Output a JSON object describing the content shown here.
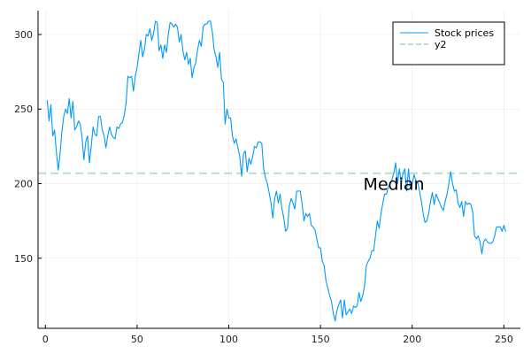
{
  "chart_data": {
    "type": "line",
    "title": "",
    "xlabel": "",
    "ylabel": "",
    "xlim": [
      -4,
      259
    ],
    "ylim": [
      103,
      316
    ],
    "xticks": [
      0,
      50,
      100,
      150,
      200,
      250
    ],
    "yticks": [
      150,
      200,
      250,
      300
    ],
    "grid": true,
    "legend_position": "top-right",
    "series": [
      {
        "name": "Stock prices",
        "color": "#009af9",
        "style": "solid",
        "points": [
          [
            1,
            256
          ],
          [
            2,
            242
          ],
          [
            3,
            253
          ],
          [
            4,
            232
          ],
          [
            5,
            236
          ],
          [
            6,
            221
          ],
          [
            7,
            209
          ],
          [
            8,
            220
          ],
          [
            9,
            235
          ],
          [
            10,
            245
          ],
          [
            11,
            250
          ],
          [
            12,
            247
          ],
          [
            13,
            257
          ],
          [
            14,
            244
          ],
          [
            15,
            255
          ],
          [
            16,
            236
          ],
          [
            17,
            238
          ],
          [
            18,
            242
          ],
          [
            19,
            240
          ],
          [
            20,
            231
          ],
          [
            21,
            216
          ],
          [
            22,
            228
          ],
          [
            23,
            232
          ],
          [
            24,
            214
          ],
          [
            25,
            225
          ],
          [
            26,
            238
          ],
          [
            27,
            233
          ],
          [
            28,
            232
          ],
          [
            29,
            245
          ],
          [
            30,
            245
          ],
          [
            31,
            236
          ],
          [
            32,
            232
          ],
          [
            33,
            224
          ],
          [
            34,
            232
          ],
          [
            35,
            238
          ],
          [
            36,
            233
          ],
          [
            37,
            231
          ],
          [
            38,
            230
          ],
          [
            39,
            238
          ],
          [
            40,
            237
          ],
          [
            41,
            240
          ],
          [
            42,
            241
          ],
          [
            43,
            246
          ],
          [
            44,
            254
          ],
          [
            45,
            272
          ],
          [
            46,
            271
          ],
          [
            47,
            272
          ],
          [
            48,
            262
          ],
          [
            49,
            272
          ],
          [
            50,
            278
          ],
          [
            51,
            287
          ],
          [
            52,
            296
          ],
          [
            53,
            285
          ],
          [
            54,
            290
          ],
          [
            55,
            300
          ],
          [
            56,
            299
          ],
          [
            57,
            304
          ],
          [
            58,
            296
          ],
          [
            59,
            301
          ],
          [
            60,
            309
          ],
          [
            61,
            308
          ],
          [
            62,
            289
          ],
          [
            63,
            293
          ],
          [
            64,
            284
          ],
          [
            65,
            293
          ],
          [
            66,
            288
          ],
          [
            67,
            300
          ],
          [
            68,
            308
          ],
          [
            69,
            307
          ],
          [
            70,
            305
          ],
          [
            71,
            307
          ],
          [
            72,
            305
          ],
          [
            73,
            295
          ],
          [
            74,
            300
          ],
          [
            75,
            289
          ],
          [
            76,
            283
          ],
          [
            77,
            288
          ],
          [
            78,
            280
          ],
          [
            79,
            284
          ],
          [
            80,
            271
          ],
          [
            81,
            278
          ],
          [
            82,
            281
          ],
          [
            83,
            290
          ],
          [
            84,
            296
          ],
          [
            85,
            292
          ],
          [
            86,
            305
          ],
          [
            87,
            307
          ],
          [
            88,
            307
          ],
          [
            89,
            309
          ],
          [
            90,
            309
          ],
          [
            91,
            302
          ],
          [
            92,
            290
          ],
          [
            93,
            285
          ],
          [
            94,
            278
          ],
          [
            95,
            288
          ],
          [
            96,
            270
          ],
          [
            97,
            268
          ],
          [
            98,
            240
          ],
          [
            99,
            250
          ],
          [
            100,
            244
          ],
          [
            101,
            244
          ],
          [
            102,
            232
          ],
          [
            103,
            227
          ],
          [
            104,
            230
          ],
          [
            105,
            224
          ],
          [
            106,
            218
          ],
          [
            107,
            205
          ],
          [
            108,
            220
          ],
          [
            109,
            222
          ],
          [
            110,
            208
          ],
          [
            111,
            217
          ],
          [
            112,
            213
          ],
          [
            113,
            218
          ],
          [
            114,
            225
          ],
          [
            115,
            224
          ],
          [
            116,
            228
          ],
          [
            117,
            228
          ],
          [
            118,
            227
          ],
          [
            119,
            210
          ],
          [
            120,
            204
          ],
          [
            121,
            200
          ],
          [
            122,
            194
          ],
          [
            123,
            187
          ],
          [
            124,
            177
          ],
          [
            125,
            190
          ],
          [
            126,
            195
          ],
          [
            127,
            187
          ],
          [
            128,
            193
          ],
          [
            129,
            183
          ],
          [
            130,
            177
          ],
          [
            131,
            168
          ],
          [
            132,
            170
          ],
          [
            133,
            185
          ],
          [
            134,
            190
          ],
          [
            135,
            187
          ],
          [
            136,
            183
          ],
          [
            137,
            195
          ],
          [
            138,
            195
          ],
          [
            139,
            195
          ],
          [
            140,
            186
          ],
          [
            141,
            175
          ],
          [
            142,
            180
          ],
          [
            143,
            178
          ],
          [
            144,
            180
          ],
          [
            145,
            172
          ],
          [
            146,
            171
          ],
          [
            147,
            169
          ],
          [
            148,
            163
          ],
          [
            149,
            157
          ],
          [
            150,
            157
          ],
          [
            151,
            148
          ],
          [
            152,
            145
          ],
          [
            153,
            135
          ],
          [
            154,
            130
          ],
          [
            155,
            125
          ],
          [
            156,
            121
          ],
          [
            157,
            113
          ],
          [
            158,
            108
          ],
          [
            159,
            115
          ],
          [
            160,
            119
          ],
          [
            161,
            122
          ],
          [
            162,
            110
          ],
          [
            163,
            122
          ],
          [
            164,
            112
          ],
          [
            165,
            114
          ],
          [
            166,
            116
          ],
          [
            167,
            113
          ],
          [
            168,
            118
          ],
          [
            169,
            117
          ],
          [
            170,
            118
          ],
          [
            171,
            127
          ],
          [
            172,
            121
          ],
          [
            173,
            125
          ],
          [
            174,
            131
          ],
          [
            175,
            145
          ],
          [
            176,
            148
          ],
          [
            177,
            150
          ],
          [
            178,
            155
          ],
          [
            179,
            155
          ],
          [
            180,
            165
          ],
          [
            181,
            175
          ],
          [
            182,
            170
          ],
          [
            183,
            180
          ],
          [
            184,
            187
          ],
          [
            185,
            193
          ],
          [
            186,
            193
          ],
          [
            187,
            198
          ],
          [
            188,
            200
          ],
          [
            189,
            203
          ],
          [
            190,
            207
          ],
          [
            191,
            214
          ],
          [
            192,
            200
          ],
          [
            193,
            210
          ],
          [
            194,
            200
          ],
          [
            195,
            207
          ],
          [
            196,
            210
          ],
          [
            197,
            195
          ],
          [
            198,
            210
          ],
          [
            199,
            197
          ],
          [
            200,
            200
          ],
          [
            201,
            206
          ],
          [
            202,
            202
          ],
          [
            203,
            201
          ],
          [
            204,
            195
          ],
          [
            205,
            188
          ],
          [
            206,
            180
          ],
          [
            207,
            174
          ],
          [
            208,
            175
          ],
          [
            209,
            180
          ],
          [
            210,
            188
          ],
          [
            211,
            194
          ],
          [
            212,
            186
          ],
          [
            213,
            193
          ],
          [
            214,
            190
          ],
          [
            215,
            187
          ],
          [
            216,
            184
          ],
          [
            217,
            182
          ],
          [
            218,
            188
          ],
          [
            219,
            193
          ],
          [
            220,
            200
          ],
          [
            221,
            208
          ],
          [
            222,
            200
          ],
          [
            223,
            195
          ],
          [
            224,
            196
          ],
          [
            225,
            187
          ],
          [
            226,
            184
          ],
          [
            227,
            188
          ],
          [
            228,
            178
          ],
          [
            229,
            188
          ],
          [
            230,
            186
          ],
          [
            231,
            187
          ],
          [
            232,
            186
          ],
          [
            233,
            181
          ],
          [
            234,
            165
          ],
          [
            235,
            163
          ],
          [
            236,
            165
          ],
          [
            237,
            161
          ],
          [
            238,
            153
          ],
          [
            239,
            161
          ],
          [
            240,
            163
          ],
          [
            241,
            161
          ],
          [
            242,
            160
          ],
          [
            243,
            160
          ],
          [
            244,
            161
          ],
          [
            245,
            165
          ],
          [
            246,
            171
          ],
          [
            247,
            171
          ],
          [
            248,
            171
          ],
          [
            249,
            168
          ],
          [
            250,
            172
          ],
          [
            251,
            168
          ]
        ]
      },
      {
        "name": "y2",
        "color": "#3da44d",
        "style": "dashed",
        "type": "hline",
        "value": 207
      }
    ],
    "annotations": [
      {
        "text": "Median",
        "x": 190,
        "y": 200
      }
    ]
  }
}
